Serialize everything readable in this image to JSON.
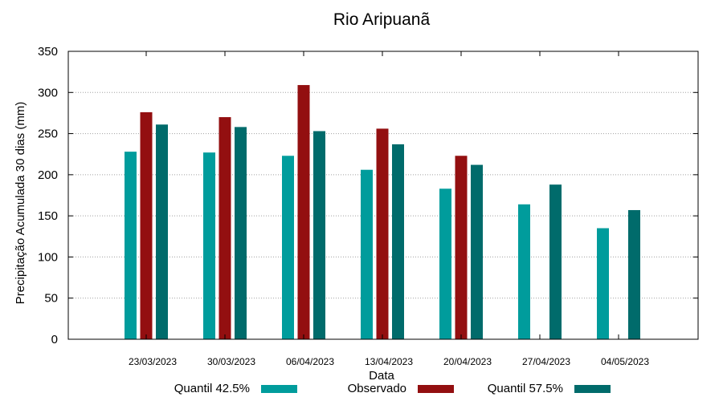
{
  "chart_data": {
    "type": "bar",
    "title": "Rio Aripuanã",
    "xlabel": "Data",
    "ylabel": "Precipitação Acumulada 30 dias (mm)",
    "ylim": [
      0,
      350
    ],
    "yticks": [
      0,
      50,
      100,
      150,
      200,
      250,
      300,
      350
    ],
    "grid": true,
    "legend_position": "bottom",
    "categories": [
      "23/03/2023",
      "30/03/2023",
      "06/04/2023",
      "13/04/2023",
      "20/04/2023",
      "27/04/2023",
      "04/05/2023"
    ],
    "series": [
      {
        "name": "Quantil 42.5%",
        "color": "#009c9c",
        "values": [
          228,
          227,
          223,
          206,
          183,
          164,
          135
        ]
      },
      {
        "name": "Observado",
        "color": "#930f10",
        "values": [
          276,
          270,
          309,
          256,
          223,
          null,
          null
        ]
      },
      {
        "name": "Quantil 57.5%",
        "color": "#006b6b",
        "values": [
          261,
          258,
          253,
          237,
          212,
          188,
          157
        ]
      }
    ]
  }
}
